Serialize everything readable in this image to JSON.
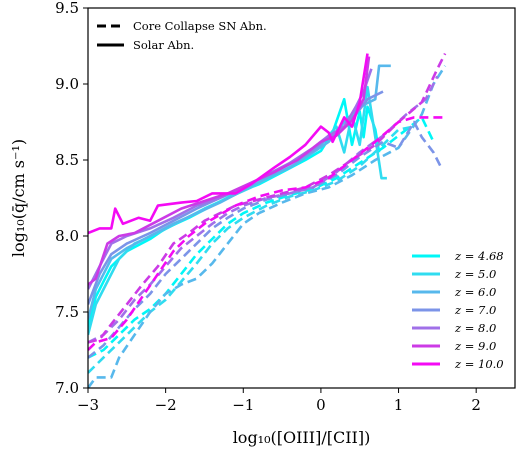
{
  "chart_data": {
    "type": "line",
    "xlabel": "log₁₀([OIII]/[CII])",
    "ylabel": "log₁₀(q̄/cm s⁻¹)",
    "xlim": [
      -3,
      2.5
    ],
    "ylim": [
      7.0,
      9.5
    ],
    "xticks": [
      -3,
      -2,
      -1,
      0,
      1,
      2
    ],
    "yticks": [
      7.0,
      7.5,
      8.0,
      8.5,
      9.0,
      9.5
    ],
    "xtick_labels": [
      "−3",
      "−2",
      "−1",
      "0",
      "1",
      "2"
    ],
    "ytick_labels": [
      "7.0",
      "7.5",
      "8.0",
      "8.5",
      "9.0",
      "9.5"
    ],
    "style_legend": {
      "placement": "top-left",
      "entries": [
        {
          "label": "Core Collapse SN Abn.",
          "style": "dashed"
        },
        {
          "label": "Solar Abn.",
          "style": "solid"
        }
      ]
    },
    "redshift_legend": {
      "placement": "lower-right",
      "entries": [
        {
          "label": "z = 4.68",
          "color": "#00f7f7"
        },
        {
          "label": "z = 5.0",
          "color": "#30dcf0"
        },
        {
          "label": "z = 6.0",
          "color": "#57b8ec"
        },
        {
          "label": "z = 7.0",
          "color": "#7c94e8"
        },
        {
          "label": "z = 8.0",
          "color": "#a070e8"
        },
        {
          "label": "z = 9.0",
          "color": "#cc3ae6"
        },
        {
          "label": "z = 10.0",
          "color": "#f40af4"
        }
      ]
    },
    "series": [
      {
        "color": "#00f7f7",
        "style": "solid",
        "points": [
          [
            -3,
            7.4
          ],
          [
            -2.9,
            7.6
          ],
          [
            -2.8,
            7.7
          ],
          [
            -2.7,
            7.8
          ],
          [
            -2.5,
            7.9
          ],
          [
            -2.2,
            7.98
          ],
          [
            -2.0,
            8.05
          ],
          [
            -1.7,
            8.12
          ],
          [
            -1.4,
            8.2
          ],
          [
            -1.1,
            8.28
          ],
          [
            -0.8,
            8.34
          ],
          [
            -0.5,
            8.42
          ],
          [
            -0.2,
            8.5
          ],
          [
            0.0,
            8.56
          ],
          [
            0.15,
            8.68
          ],
          [
            0.3,
            8.9
          ],
          [
            0.4,
            8.6
          ],
          [
            0.5,
            8.82
          ],
          [
            0.55,
            8.65
          ],
          [
            0.6,
            8.85
          ],
          [
            0.7,
            8.7
          ],
          [
            0.75,
            8.55
          ]
        ]
      },
      {
        "color": "#30dcf0",
        "style": "solid",
        "points": [
          [
            -3,
            7.35
          ],
          [
            -2.9,
            7.55
          ],
          [
            -2.75,
            7.7
          ],
          [
            -2.6,
            7.85
          ],
          [
            -2.4,
            7.95
          ],
          [
            -2.1,
            8.02
          ],
          [
            -1.8,
            8.1
          ],
          [
            -1.5,
            8.18
          ],
          [
            -1.2,
            8.25
          ],
          [
            -0.9,
            8.32
          ],
          [
            -0.6,
            8.4
          ],
          [
            -0.3,
            8.48
          ],
          [
            0.0,
            8.6
          ],
          [
            0.2,
            8.72
          ],
          [
            0.3,
            8.55
          ],
          [
            0.4,
            8.8
          ],
          [
            0.5,
            8.6
          ],
          [
            0.6,
            8.98
          ],
          [
            0.7,
            8.65
          ],
          [
            0.78,
            8.38
          ],
          [
            0.85,
            8.38
          ]
        ]
      },
      {
        "color": "#57b8ec",
        "style": "solid",
        "points": [
          [
            -3,
            7.45
          ],
          [
            -2.9,
            7.65
          ],
          [
            -2.7,
            7.85
          ],
          [
            -2.5,
            7.92
          ],
          [
            -2.2,
            8.0
          ],
          [
            -1.9,
            8.08
          ],
          [
            -1.6,
            8.15
          ],
          [
            -1.3,
            8.22
          ],
          [
            -1.0,
            8.3
          ],
          [
            -0.7,
            8.38
          ],
          [
            -0.4,
            8.45
          ],
          [
            -0.1,
            8.55
          ],
          [
            0.1,
            8.62
          ],
          [
            0.3,
            8.75
          ],
          [
            0.5,
            8.85
          ],
          [
            0.7,
            8.9
          ],
          [
            0.75,
            9.12
          ],
          [
            0.9,
            9.12
          ]
        ]
      },
      {
        "color": "#7c94e8",
        "style": "solid",
        "points": [
          [
            -3,
            7.55
          ],
          [
            -2.85,
            7.75
          ],
          [
            -2.7,
            7.88
          ],
          [
            -2.5,
            7.95
          ],
          [
            -2.2,
            8.02
          ],
          [
            -1.9,
            8.1
          ],
          [
            -1.6,
            8.18
          ],
          [
            -1.3,
            8.25
          ],
          [
            -1.0,
            8.32
          ],
          [
            -0.7,
            8.4
          ],
          [
            -0.4,
            8.48
          ],
          [
            -0.1,
            8.56
          ],
          [
            0.1,
            8.65
          ],
          [
            0.3,
            8.72
          ],
          [
            0.45,
            8.8
          ],
          [
            0.6,
            8.9
          ],
          [
            0.8,
            8.95
          ]
        ]
      },
      {
        "color": "#a070e8",
        "style": "solid",
        "points": [
          [
            -3,
            7.65
          ],
          [
            -2.85,
            7.8
          ],
          [
            -2.7,
            7.95
          ],
          [
            -2.5,
            8.0
          ],
          [
            -2.2,
            8.05
          ],
          [
            -1.9,
            8.12
          ],
          [
            -1.6,
            8.2
          ],
          [
            -1.3,
            8.25
          ],
          [
            -1.0,
            8.32
          ],
          [
            -0.7,
            8.4
          ],
          [
            -0.4,
            8.48
          ],
          [
            -0.1,
            8.58
          ],
          [
            0.1,
            8.66
          ],
          [
            0.3,
            8.72
          ],
          [
            0.45,
            8.85
          ],
          [
            0.55,
            8.95
          ],
          [
            0.65,
            9.1
          ]
        ]
      },
      {
        "color": "#cc3ae6",
        "style": "solid",
        "points": [
          [
            -3,
            7.68
          ],
          [
            -2.9,
            7.72
          ],
          [
            -2.75,
            7.95
          ],
          [
            -2.6,
            8.0
          ],
          [
            -2.4,
            8.02
          ],
          [
            -2.1,
            8.1
          ],
          [
            -1.8,
            8.18
          ],
          [
            -1.5,
            8.23
          ],
          [
            -1.2,
            8.28
          ],
          [
            -0.9,
            8.35
          ],
          [
            -0.6,
            8.42
          ],
          [
            -0.3,
            8.5
          ],
          [
            0.0,
            8.62
          ],
          [
            0.2,
            8.66
          ],
          [
            0.4,
            8.76
          ],
          [
            0.55,
            8.9
          ],
          [
            0.62,
            9.18
          ]
        ]
      },
      {
        "color": "#f40af4",
        "style": "solid",
        "points": [
          [
            -3,
            8.02
          ],
          [
            -2.85,
            8.05
          ],
          [
            -2.7,
            8.05
          ],
          [
            -2.65,
            8.18
          ],
          [
            -2.55,
            8.08
          ],
          [
            -2.35,
            8.12
          ],
          [
            -2.2,
            8.1
          ],
          [
            -2.1,
            8.2
          ],
          [
            -1.8,
            8.22
          ],
          [
            -1.6,
            8.23
          ],
          [
            -1.4,
            8.28
          ],
          [
            -1.1,
            8.28
          ],
          [
            -0.9,
            8.34
          ],
          [
            -0.6,
            8.45
          ],
          [
            -0.4,
            8.52
          ],
          [
            -0.2,
            8.6
          ],
          [
            0.0,
            8.72
          ],
          [
            0.1,
            8.68
          ],
          [
            0.15,
            8.62
          ],
          [
            0.3,
            8.78
          ],
          [
            0.4,
            8.72
          ],
          [
            0.5,
            8.88
          ],
          [
            0.6,
            9.2
          ]
        ]
      },
      {
        "color": "#00f7f7",
        "style": "dashed",
        "points": [
          [
            -3,
            7.2
          ],
          [
            -2.8,
            7.25
          ],
          [
            -2.6,
            7.35
          ],
          [
            -2.4,
            7.45
          ],
          [
            -2.2,
            7.52
          ],
          [
            -2.0,
            7.62
          ],
          [
            -1.8,
            7.75
          ],
          [
            -1.6,
            7.88
          ],
          [
            -1.4,
            7.98
          ],
          [
            -1.2,
            8.08
          ],
          [
            -1.0,
            8.15
          ],
          [
            -0.7,
            8.22
          ],
          [
            -0.4,
            8.27
          ],
          [
            -0.1,
            8.31
          ],
          [
            0.2,
            8.38
          ],
          [
            0.5,
            8.48
          ],
          [
            0.8,
            8.58
          ],
          [
            1.1,
            8.7
          ],
          [
            1.3,
            8.78
          ],
          [
            1.45,
            8.62
          ]
        ]
      },
      {
        "color": "#30dcf0",
        "style": "dashed",
        "points": [
          [
            -3,
            7.1
          ],
          [
            -2.8,
            7.2
          ],
          [
            -2.6,
            7.3
          ],
          [
            -2.4,
            7.4
          ],
          [
            -2.2,
            7.5
          ],
          [
            -2.0,
            7.58
          ],
          [
            -1.8,
            7.7
          ],
          [
            -1.6,
            7.82
          ],
          [
            -1.4,
            7.95
          ],
          [
            -1.2,
            8.05
          ],
          [
            -1.0,
            8.12
          ],
          [
            -0.7,
            8.2
          ],
          [
            -0.4,
            8.26
          ],
          [
            -0.1,
            8.3
          ],
          [
            0.2,
            8.36
          ],
          [
            0.5,
            8.46
          ],
          [
            0.8,
            8.6
          ],
          [
            1.0,
            8.7
          ],
          [
            1.2,
            8.72
          ]
        ]
      },
      {
        "color": "#57b8ec",
        "style": "dashed",
        "points": [
          [
            -3,
            7.0
          ],
          [
            -2.9,
            7.07
          ],
          [
            -2.7,
            7.07
          ],
          [
            -2.6,
            7.2
          ],
          [
            -2.4,
            7.35
          ],
          [
            -2.2,
            7.5
          ],
          [
            -2.0,
            7.62
          ],
          [
            -1.8,
            7.68
          ],
          [
            -1.6,
            7.72
          ],
          [
            -1.4,
            7.82
          ],
          [
            -1.2,
            7.95
          ],
          [
            -1.0,
            8.08
          ],
          [
            -0.8,
            8.15
          ],
          [
            -0.5,
            8.22
          ],
          [
            -0.2,
            8.28
          ],
          [
            0.1,
            8.32
          ],
          [
            0.4,
            8.4
          ],
          [
            0.7,
            8.5
          ],
          [
            1.0,
            8.58
          ],
          [
            1.3,
            8.8
          ],
          [
            1.45,
            9.0
          ],
          [
            1.6,
            9.12
          ]
        ]
      },
      {
        "color": "#7c94e8",
        "style": "dashed",
        "points": [
          [
            -3,
            7.2
          ],
          [
            -2.8,
            7.28
          ],
          [
            -2.6,
            7.4
          ],
          [
            -2.4,
            7.52
          ],
          [
            -2.2,
            7.62
          ],
          [
            -2.0,
            7.75
          ],
          [
            -1.8,
            7.85
          ],
          [
            -1.6,
            7.95
          ],
          [
            -1.4,
            8.05
          ],
          [
            -1.2,
            8.12
          ],
          [
            -1.0,
            8.18
          ],
          [
            -0.7,
            8.24
          ],
          [
            -0.4,
            8.28
          ],
          [
            -0.1,
            8.32
          ],
          [
            0.2,
            8.4
          ],
          [
            0.5,
            8.52
          ],
          [
            0.8,
            8.62
          ],
          [
            1.0,
            8.58
          ],
          [
            1.2,
            8.75
          ],
          [
            1.3,
            8.65
          ],
          [
            1.45,
            8.55
          ],
          [
            1.55,
            8.45
          ]
        ]
      },
      {
        "color": "#a070e8",
        "style": "dashed",
        "points": [
          [
            -3,
            7.3
          ],
          [
            -2.8,
            7.35
          ],
          [
            -2.6,
            7.45
          ],
          [
            -2.4,
            7.58
          ],
          [
            -2.2,
            7.68
          ],
          [
            -2.0,
            7.8
          ],
          [
            -1.8,
            7.92
          ],
          [
            -1.6,
            8.0
          ],
          [
            -1.4,
            8.08
          ],
          [
            -1.2,
            8.15
          ],
          [
            -1.0,
            8.2
          ],
          [
            -0.7,
            8.25
          ],
          [
            -0.4,
            8.28
          ],
          [
            -0.1,
            8.32
          ],
          [
            0.2,
            8.42
          ],
          [
            0.5,
            8.55
          ],
          [
            0.8,
            8.66
          ],
          [
            1.1,
            8.8
          ],
          [
            1.35,
            8.9
          ],
          [
            1.5,
            9.05
          ]
        ]
      },
      {
        "color": "#cc3ae6",
        "style": "dashed",
        "points": [
          [
            -3,
            7.3
          ],
          [
            -2.85,
            7.32
          ],
          [
            -2.7,
            7.42
          ],
          [
            -2.5,
            7.55
          ],
          [
            -2.3,
            7.68
          ],
          [
            -2.1,
            7.8
          ],
          [
            -1.9,
            7.95
          ],
          [
            -1.7,
            8.02
          ],
          [
            -1.5,
            8.1
          ],
          [
            -1.3,
            8.15
          ],
          [
            -1.1,
            8.2
          ],
          [
            -0.8,
            8.24
          ],
          [
            -0.5,
            8.28
          ],
          [
            -0.2,
            8.32
          ],
          [
            0.1,
            8.4
          ],
          [
            0.4,
            8.5
          ],
          [
            0.7,
            8.6
          ],
          [
            1.0,
            8.75
          ],
          [
            1.3,
            8.88
          ],
          [
            1.5,
            9.1
          ],
          [
            1.6,
            9.2
          ]
        ]
      },
      {
        "color": "#f40af4",
        "style": "dashed",
        "points": [
          [
            -3,
            7.25
          ],
          [
            -2.9,
            7.3
          ],
          [
            -2.7,
            7.33
          ],
          [
            -2.5,
            7.45
          ],
          [
            -2.3,
            7.6
          ],
          [
            -2.1,
            7.75
          ],
          [
            -1.9,
            7.9
          ],
          [
            -1.7,
            8.0
          ],
          [
            -1.5,
            8.08
          ],
          [
            -1.3,
            8.14
          ],
          [
            -1.1,
            8.2
          ],
          [
            -0.8,
            8.26
          ],
          [
            -0.5,
            8.3
          ],
          [
            -0.2,
            8.32
          ],
          [
            0.1,
            8.38
          ],
          [
            0.4,
            8.5
          ],
          [
            0.7,
            8.62
          ],
          [
            1.0,
            8.75
          ],
          [
            1.2,
            8.78
          ],
          [
            1.35,
            8.78
          ],
          [
            1.6,
            8.78
          ]
        ]
      }
    ]
  }
}
